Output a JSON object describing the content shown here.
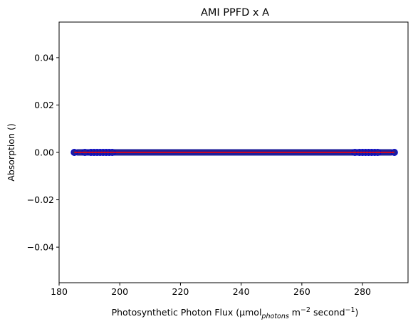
{
  "chart_data": {
    "type": "scatter",
    "title": "AMI PPFD x A",
    "xlabel": {
      "main": "Photosynthetic Photon Flux (µmol",
      "sub": "photons",
      "m": " m",
      "m_exp": "−2",
      "sec": " second",
      "sec_exp": "−1",
      "close": ")"
    },
    "ylabel": "Absorption ()",
    "xlim": [
      180,
      295
    ],
    "ylim": [
      -0.055,
      0.055
    ],
    "xticks": [
      180,
      200,
      220,
      240,
      260,
      280
    ],
    "yticks": [
      -0.04,
      -0.02,
      0.0,
      0.02,
      0.04
    ],
    "ytick_labels": [
      "−0.04",
      "−0.02",
      "0.00",
      "0.02",
      "0.04"
    ],
    "grid": false,
    "series": [
      {
        "kind": "scatter",
        "color": "#1f1f9a",
        "edge_color": "#0000cc",
        "x_range": [
          185,
          290.5
        ],
        "y": 0.0,
        "x_outliers": [
          185,
          188.5,
          190.5,
          191.5,
          192.5,
          193.5,
          194.5,
          195.5,
          196.5,
          197.5,
          277.5,
          279,
          280,
          281,
          282,
          283,
          284,
          285,
          290.5
        ]
      },
      {
        "kind": "line",
        "color": "#ff0000",
        "x": [
          185,
          290.5
        ],
        "y": [
          0.0,
          0.0
        ]
      }
    ]
  }
}
